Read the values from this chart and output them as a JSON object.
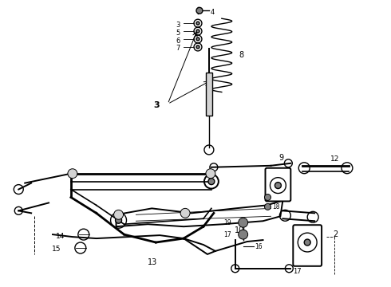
{
  "bg_color": "#ffffff",
  "fig_width": 4.9,
  "fig_height": 3.6,
  "dpi": 100
}
